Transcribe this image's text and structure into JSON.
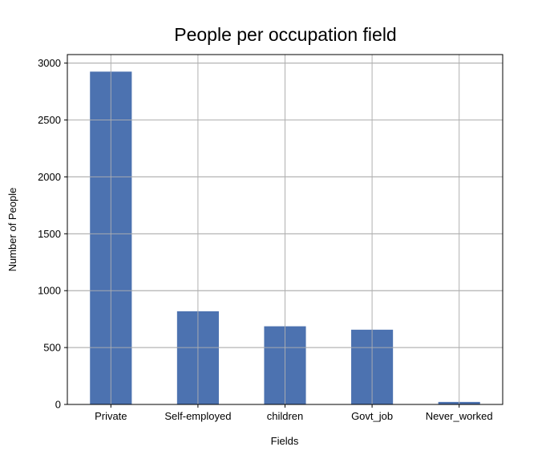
{
  "chart_data": {
    "type": "bar",
    "title": "People per occupation field",
    "xlabel": "Fields",
    "ylabel": "Number of People",
    "categories": [
      "Private",
      "Self-employed",
      "children",
      "Govt_job",
      "Never_worked"
    ],
    "values": [
      2925,
      819,
      687,
      657,
      22
    ],
    "ylim": [
      0,
      3075
    ],
    "yticks": [
      0,
      500,
      1000,
      1500,
      2000,
      2500,
      3000
    ],
    "grid": true,
    "legend": "none",
    "colors": {
      "bar": "#4c72b0",
      "grid": "#b0b0b0",
      "axis": "#000000"
    }
  }
}
